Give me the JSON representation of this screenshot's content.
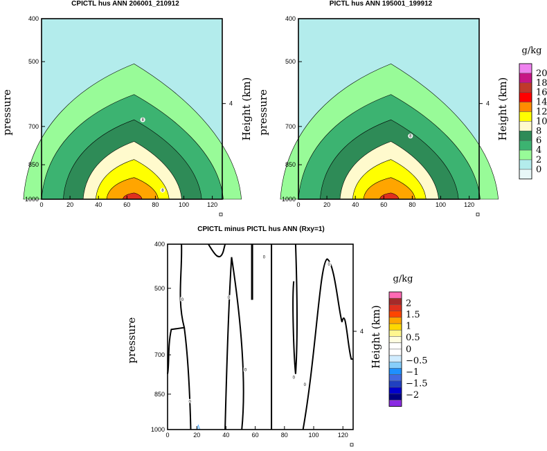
{
  "chart_data": [
    {
      "type": "contour",
      "title": "CPICTL hus ANN 206001_210912",
      "xlabel": "",
      "ylabel": "pressure",
      "right_label": "Height (km)",
      "xlim": [
        0,
        127
      ],
      "xticks": [
        "0",
        "20",
        "40",
        "60",
        "80",
        "100",
        "120"
      ],
      "yticks": [
        "400",
        "500",
        "700",
        "850",
        "1000"
      ],
      "right_ticks": [
        "4"
      ],
      "background_color": "#b3ecec",
      "filled_levels": [
        {
          "level": "2-4",
          "color": "#98fb98",
          "half_width": [
            60,
            44,
            35,
            18,
            16,
            8
          ]
        },
        {
          "level": "4-6",
          "color": "#3cb371",
          "half_width": [
            50,
            30,
            20,
            9,
            6,
            3
          ]
        },
        {
          "level": "6-8",
          "color": "#2e8b57",
          "half_width": [
            38,
            22,
            12,
            4,
            2,
            1
          ]
        },
        {
          "level": "8-10",
          "color": "#fffacd",
          "half_width": [
            27,
            12,
            6,
            1
          ]
        },
        {
          "level": "10-12",
          "color": "#ffff00",
          "half_width": [
            20,
            7,
            3
          ]
        },
        {
          "level": "12-14",
          "color": "#ffa500",
          "half_width": [
            14,
            4
          ]
        },
        {
          "level": "14-16",
          "color": "#e0301e",
          "half_width": [
            5,
            2
          ]
        }
      ]
    },
    {
      "type": "contour",
      "title": "PICTL hus ANN 195001_199912",
      "xlabel": "",
      "ylabel": "pressure",
      "right_label": "Height (km)",
      "xlim": [
        0,
        127
      ],
      "xticks": [
        "0",
        "20",
        "40",
        "60",
        "80",
        "100",
        "120"
      ],
      "yticks": [
        "400",
        "500",
        "700",
        "850",
        "1000"
      ],
      "right_ticks": [
        "4"
      ],
      "background_color": "#b3ecec",
      "filled_levels": [
        {
          "level": "2-4",
          "color": "#98fb98",
          "half_width": [
            60,
            44,
            35,
            18,
            16,
            8
          ]
        },
        {
          "level": "4-6",
          "color": "#3cb371",
          "half_width": [
            50,
            30,
            20,
            9,
            6,
            3
          ]
        },
        {
          "level": "6-8",
          "color": "#2e8b57",
          "half_width": [
            38,
            22,
            12,
            4,
            2,
            1
          ]
        },
        {
          "level": "8-10",
          "color": "#fffacd",
          "half_width": [
            27,
            12,
            6,
            1
          ]
        },
        {
          "level": "10-12",
          "color": "#ffff00",
          "half_width": [
            20,
            7,
            3
          ]
        },
        {
          "level": "12-14",
          "color": "#ffa500",
          "half_width": [
            14,
            4
          ]
        },
        {
          "level": "14-16",
          "color": "#e0301e",
          "half_width": [
            5,
            2
          ]
        }
      ]
    },
    {
      "type": "contour",
      "title": "CPICTL minus PICTL hus ANN (Rxy=1)",
      "xlabel": "",
      "ylabel": "pressure",
      "right_label": "Height (km)",
      "xlim": [
        0,
        127
      ],
      "xticks": [
        "0",
        "20",
        "40",
        "60",
        "80",
        "100",
        "120"
      ],
      "yticks": [
        "400",
        "500",
        "700",
        "850",
        "1000"
      ],
      "right_ticks": [
        "4"
      ],
      "zero_contour_label": "0"
    }
  ],
  "colorbars": [
    {
      "unit": "g/kg",
      "labels": [
        "20",
        "18",
        "16",
        "14",
        "12",
        "10",
        "8",
        "6",
        "4",
        "2",
        "0"
      ],
      "colors": [
        "#ee82ee",
        "#c71585",
        "#c0392b",
        "#ff0000",
        "#ff8c00",
        "#ffff00",
        "#fffacd",
        "#2e8b57",
        "#3cb371",
        "#98fb98",
        "#b3ecec",
        "#e8f8f8"
      ]
    },
    {
      "unit": "g/kg",
      "labels": [
        "2",
        "1.5",
        "1",
        "0.5",
        "0",
        "−0.5",
        "−1",
        "−1.5",
        "−2"
      ],
      "colors": [
        "#ff69b4",
        "#a52a2a",
        "#e0301e",
        "#ff4500",
        "#ffa500",
        "#ffd700",
        "#fff68f",
        "#fffde0",
        "#ffffff",
        "#ffffff",
        "#d0ecff",
        "#87cefa",
        "#1e90ff",
        "#4169e1",
        "#2040c0",
        "#0000cd",
        "#000080",
        "#8a2be2"
      ]
    }
  ],
  "axis_text": {
    "pressure": "pressure",
    "height": "Height (km)"
  }
}
